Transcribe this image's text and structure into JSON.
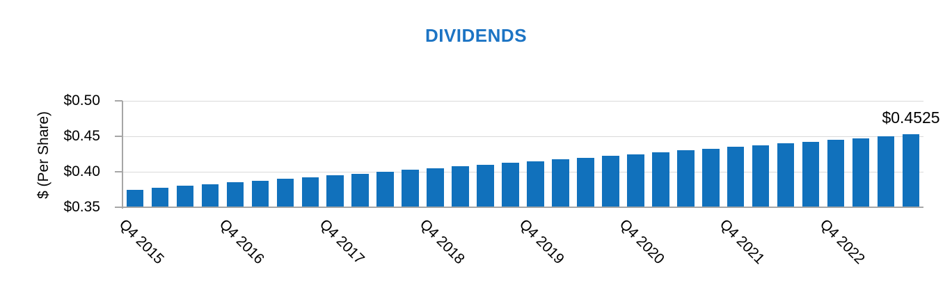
{
  "title": {
    "text": "DIVIDENDS"
  },
  "colors": {
    "title_blue": "#1C74C4",
    "bar_blue": "#1171BC",
    "axis_gray": "#A6A6A6",
    "grid_gray": "#D9D9D9",
    "text_black": "#000000"
  },
  "chart_data": {
    "type": "bar",
    "title": "DIVIDENDS",
    "xlabel": "",
    "ylabel": "$ (Per Share)",
    "ylim": [
      0.35,
      0.5
    ],
    "yticks": [
      0.35,
      0.4,
      0.45,
      0.5
    ],
    "ytick_labels": [
      "$0.35",
      "$0.40",
      "$0.45",
      "$0.50"
    ],
    "grid": "horizontal",
    "legend": "none",
    "categories": [
      "Q4 2015",
      "Q1 2016",
      "Q2 2016",
      "Q3 2016",
      "Q4 2016",
      "Q1 2017",
      "Q2 2017",
      "Q3 2017",
      "Q4 2017",
      "Q1 2018",
      "Q2 2018",
      "Q3 2018",
      "Q4 2018",
      "Q1 2019",
      "Q2 2019",
      "Q3 2019",
      "Q4 2019",
      "Q1 2020",
      "Q2 2020",
      "Q3 2020",
      "Q4 2020",
      "Q1 2021",
      "Q2 2021",
      "Q3 2021",
      "Q4 2021",
      "Q1 2022",
      "Q2 2022",
      "Q3 2022",
      "Q4 2022",
      "Q1 2023",
      "Q2 2023",
      "Q3 2023"
    ],
    "values": [
      0.375,
      0.3775,
      0.38,
      0.3825,
      0.385,
      0.3875,
      0.39,
      0.3925,
      0.395,
      0.3975,
      0.4,
      0.4025,
      0.405,
      0.4075,
      0.41,
      0.4125,
      0.415,
      0.4175,
      0.42,
      0.4225,
      0.425,
      0.4275,
      0.43,
      0.4325,
      0.435,
      0.4375,
      0.44,
      0.4425,
      0.445,
      0.4475,
      0.45,
      0.4525
    ],
    "xtick_label_every": 4,
    "visible_xtick_labels": [
      "Q4 2015",
      "Q4 2016",
      "Q4 2017",
      "Q4 2018",
      "Q4 2019",
      "Q4 2020",
      "Q4 2021",
      "Q4 2022"
    ],
    "data_label": {
      "text": "$0.4525",
      "bar_index": 31
    }
  }
}
